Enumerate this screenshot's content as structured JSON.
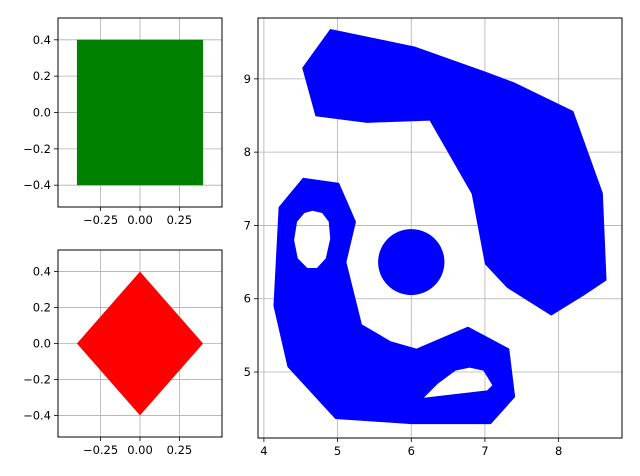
{
  "chart_data": [
    {
      "type": "area",
      "shape": "square",
      "series": [
        {
          "color": "#008000",
          "x": [
            -0.4,
            0.4,
            0.4,
            -0.4
          ],
          "y": [
            0.4,
            0.4,
            -0.4,
            -0.4
          ]
        }
      ],
      "xlim": [
        -0.52,
        0.52
      ],
      "ylim": [
        -0.52,
        0.52
      ],
      "xticks": [
        -0.25,
        0.0,
        0.25
      ],
      "xtick_labels": [
        "−0.25",
        "0.00",
        "0.25"
      ],
      "yticks": [
        -0.4,
        -0.2,
        0.0,
        0.2,
        0.4
      ],
      "ytick_labels": [
        "−0.4",
        "−0.2",
        "0.0",
        "0.2",
        "0.4"
      ],
      "grid": true
    },
    {
      "type": "area",
      "shape": "diamond",
      "series": [
        {
          "color": "#ff0000",
          "x": [
            0.0,
            0.4,
            0.0,
            -0.4
          ],
          "y": [
            0.4,
            0.0,
            -0.4,
            0.0
          ]
        }
      ],
      "xlim": [
        -0.52,
        0.52
      ],
      "ylim": [
        -0.52,
        0.52
      ],
      "xticks": [
        -0.25,
        0.0,
        0.25
      ],
      "xtick_labels": [
        "−0.25",
        "0.00",
        "0.25"
      ],
      "yticks": [
        -0.4,
        -0.2,
        0.0,
        0.2,
        0.4
      ],
      "ytick_labels": [
        "−0.4",
        "−0.2",
        "0.0",
        "0.2",
        "0.4"
      ],
      "grid": true
    },
    {
      "type": "area",
      "shape": "face",
      "xlim": [
        3.92,
        8.86
      ],
      "ylim": [
        4.1,
        9.83
      ],
      "xticks": [
        4,
        5,
        6,
        7,
        8
      ],
      "xtick_labels": [
        "4",
        "5",
        "6",
        "7",
        "8"
      ],
      "yticks": [
        5,
        6,
        7,
        8,
        9
      ],
      "ytick_labels": [
        "5",
        "6",
        "7",
        "8",
        "9"
      ],
      "grid": true,
      "fill_color": "#0000ff",
      "polygons": [
        {
          "name": "hair",
          "outer": [
            [
              4.9,
              9.68
            ],
            [
              6.05,
              9.44
            ],
            [
              7.0,
              9.1
            ],
            [
              7.4,
              8.95
            ],
            [
              8.2,
              8.56
            ],
            [
              8.6,
              7.44
            ],
            [
              8.65,
              6.25
            ],
            [
              8.35,
              6.05
            ],
            [
              7.9,
              5.77
            ],
            [
              7.3,
              6.15
            ],
            [
              7.0,
              6.47
            ],
            [
              6.82,
              7.43
            ],
            [
              6.25,
              8.43
            ],
            [
              5.4,
              8.4
            ],
            [
              4.7,
              8.49
            ],
            [
              4.52,
              9.15
            ]
          ],
          "holes": []
        },
        {
          "name": "head",
          "outer": [
            [
              4.53,
              7.65
            ],
            [
              5.02,
              7.58
            ],
            [
              5.25,
              7.05
            ],
            [
              5.12,
              6.5
            ],
            [
              5.33,
              5.65
            ],
            [
              5.72,
              5.42
            ],
            [
              6.07,
              5.32
            ],
            [
              6.77,
              5.62
            ],
            [
              7.33,
              5.32
            ],
            [
              7.41,
              4.66
            ],
            [
              7.08,
              4.29
            ],
            [
              6.0,
              4.29
            ],
            [
              4.97,
              4.36
            ],
            [
              4.32,
              5.07
            ],
            [
              4.13,
              5.9
            ],
            [
              4.2,
              7.25
            ]
          ],
          "holes": [
            [
              [
                4.66,
                7.2
              ],
              [
                4.79,
                7.17
              ],
              [
                4.88,
                7.05
              ],
              [
                4.9,
                6.82
              ],
              [
                4.84,
                6.55
              ],
              [
                4.72,
                6.42
              ],
              [
                4.59,
                6.42
              ],
              [
                4.46,
                6.55
              ],
              [
                4.41,
                6.8
              ],
              [
                4.45,
                7.05
              ],
              [
                4.55,
                7.17
              ]
            ],
            [
              [
                6.17,
                4.65
              ],
              [
                7.03,
                4.75
              ],
              [
                7.1,
                4.82
              ],
              [
                6.98,
                5.02
              ],
              [
                6.79,
                5.06
              ],
              [
                6.6,
                5.02
              ],
              [
                6.36,
                4.84
              ]
            ]
          ]
        },
        {
          "name": "eye",
          "circle": {
            "cx": 6.0,
            "cy": 6.5,
            "r": 0.45
          }
        }
      ]
    }
  ]
}
